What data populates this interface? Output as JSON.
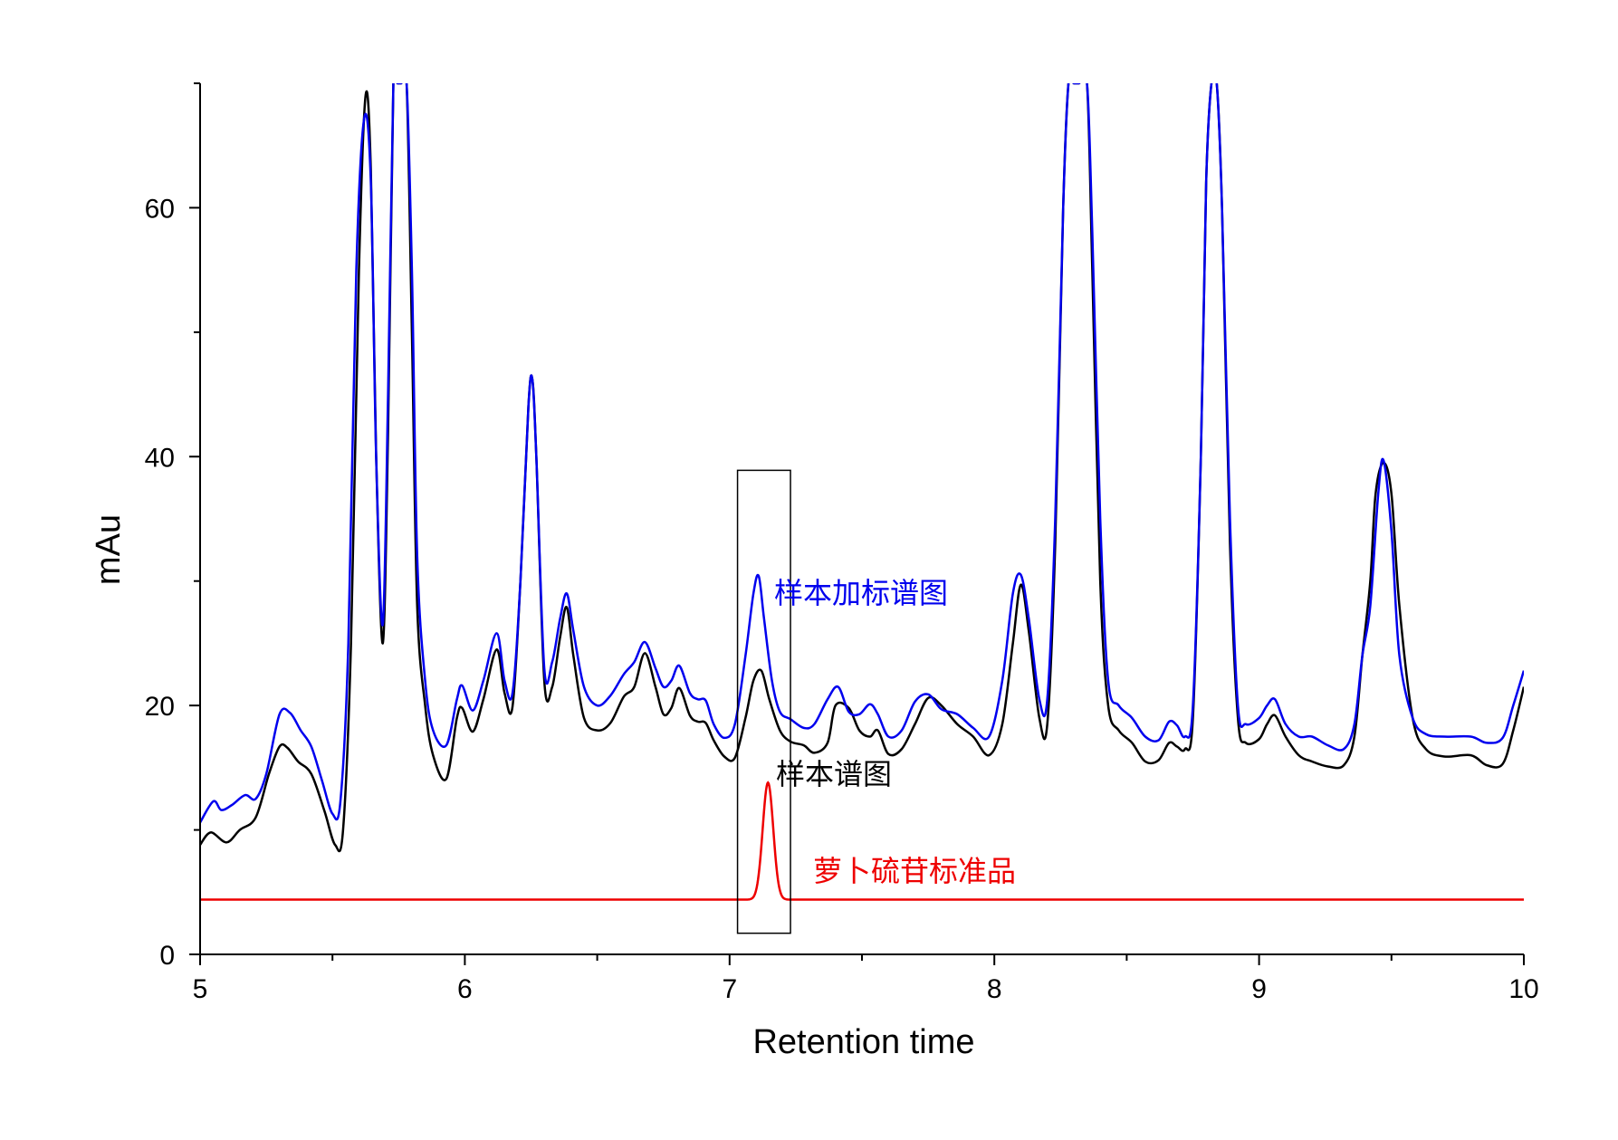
{
  "chart_data": {
    "type": "line",
    "title": "",
    "xlabel": "Retention time",
    "ylabel": "mAu",
    "xlim": [
      5,
      10
    ],
    "ylim": [
      0,
      70
    ],
    "x_ticks": [
      5,
      6,
      7,
      8,
      9,
      10
    ],
    "y_ticks": [
      0,
      20,
      40,
      60
    ],
    "grid": false,
    "legend": "none",
    "series": [
      {
        "name": "样本加标谱图",
        "color": "#0000ee",
        "x": [
          5.0,
          5.05,
          5.08,
          5.12,
          5.17,
          5.21,
          5.25,
          5.3,
          5.34,
          5.38,
          5.42,
          5.46,
          5.5,
          5.53,
          5.56,
          5.59,
          5.62,
          5.645,
          5.665,
          5.69,
          5.71,
          5.73,
          5.745,
          5.76,
          5.78,
          5.8,
          5.82,
          5.85,
          5.88,
          5.93,
          5.97,
          5.99,
          6.03,
          6.07,
          6.12,
          6.15,
          6.18,
          6.21,
          6.24,
          6.255,
          6.27,
          6.3,
          6.33,
          6.36,
          6.385,
          6.41,
          6.45,
          6.5,
          6.55,
          6.6,
          6.64,
          6.68,
          6.72,
          6.75,
          6.78,
          6.81,
          6.85,
          6.88,
          6.91,
          6.94,
          6.98,
          7.02,
          7.06,
          7.09,
          7.11,
          7.13,
          7.16,
          7.19,
          7.23,
          7.28,
          7.32,
          7.37,
          7.41,
          7.45,
          7.49,
          7.53,
          7.56,
          7.6,
          7.65,
          7.7,
          7.75,
          7.8,
          7.86,
          7.92,
          7.98,
          8.03,
          8.07,
          8.1,
          8.13,
          8.17,
          8.2,
          8.23,
          8.26,
          8.28,
          8.3,
          8.32,
          8.35,
          8.37,
          8.4,
          8.43,
          8.47,
          8.52,
          8.57,
          8.62,
          8.66,
          8.69,
          8.72,
          8.75,
          8.78,
          8.8,
          8.82,
          8.84,
          8.86,
          8.89,
          8.92,
          8.95,
          9.0,
          9.03,
          9.06,
          9.1,
          9.15,
          9.2,
          9.26,
          9.32,
          9.36,
          9.39,
          9.42,
          9.45,
          9.47,
          9.5,
          9.53,
          9.58,
          9.63,
          9.7,
          9.8,
          9.86,
          9.92,
          9.96,
          10.0
        ],
        "y": [
          10.6,
          12.3,
          11.6,
          12.0,
          12.8,
          12.5,
          14.5,
          19.3,
          19.4,
          18.0,
          16.7,
          14.0,
          11.3,
          12.3,
          25.0,
          55.0,
          67.2,
          62.0,
          40.0,
          26.5,
          45.0,
          70.0,
          70.0,
          70.0,
          70.0,
          55.0,
          32.0,
          22.0,
          18.0,
          16.8,
          20.5,
          21.6,
          19.6,
          22.0,
          25.8,
          22.0,
          21.0,
          30.0,
          44.0,
          46.2,
          40.0,
          23.0,
          23.5,
          27.0,
          29.0,
          26.0,
          21.5,
          20.0,
          20.8,
          22.5,
          23.5,
          25.1,
          23.0,
          21.5,
          22.0,
          23.2,
          21.0,
          20.5,
          20.4,
          18.5,
          17.4,
          18.5,
          24.0,
          29.0,
          30.4,
          27.0,
          22.0,
          19.5,
          18.9,
          18.2,
          18.5,
          20.5,
          21.5,
          19.5,
          19.3,
          20.1,
          19.3,
          17.5,
          18.0,
          20.3,
          20.9,
          19.7,
          19.3,
          18.2,
          17.5,
          22.0,
          29.0,
          30.5,
          27.0,
          20.5,
          20.5,
          35.0,
          60.0,
          70.0,
          70.0,
          70.0,
          70.0,
          58.0,
          35.0,
          22.0,
          20.0,
          19.0,
          17.5,
          17.2,
          18.7,
          18.4,
          17.5,
          20.0,
          40.0,
          62.0,
          70.0,
          70.0,
          60.0,
          35.0,
          20.0,
          18.5,
          19.0,
          20.0,
          20.5,
          18.5,
          17.5,
          17.5,
          16.8,
          16.5,
          18.5,
          24.0,
          28.0,
          37.0,
          39.7,
          34.0,
          24.0,
          19.0,
          17.7,
          17.5,
          17.5,
          17.0,
          17.4,
          20.0,
          22.8
        ]
      },
      {
        "name": "样本谱图",
        "color": "#000000",
        "x": [
          5.0,
          5.04,
          5.1,
          5.15,
          5.21,
          5.26,
          5.3,
          5.33,
          5.37,
          5.42,
          5.47,
          5.51,
          5.54,
          5.57,
          5.6,
          5.625,
          5.645,
          5.665,
          5.69,
          5.71,
          5.73,
          5.745,
          5.76,
          5.78,
          5.8,
          5.82,
          5.85,
          5.88,
          5.93,
          5.97,
          5.99,
          6.03,
          6.07,
          6.12,
          6.15,
          6.18,
          6.21,
          6.24,
          6.255,
          6.27,
          6.3,
          6.33,
          6.36,
          6.385,
          6.41,
          6.45,
          6.5,
          6.55,
          6.6,
          6.64,
          6.68,
          6.72,
          6.75,
          6.78,
          6.81,
          6.85,
          6.88,
          6.91,
          6.94,
          6.98,
          7.02,
          7.06,
          7.09,
          7.12,
          7.15,
          7.19,
          7.23,
          7.28,
          7.32,
          7.37,
          7.4,
          7.45,
          7.49,
          7.53,
          7.56,
          7.6,
          7.65,
          7.7,
          7.75,
          7.8,
          7.86,
          7.92,
          7.98,
          8.03,
          8.07,
          8.1,
          8.13,
          8.17,
          8.2,
          8.23,
          8.26,
          8.28,
          8.3,
          8.32,
          8.35,
          8.37,
          8.4,
          8.43,
          8.47,
          8.52,
          8.57,
          8.62,
          8.66,
          8.69,
          8.72,
          8.75,
          8.78,
          8.8,
          8.82,
          8.84,
          8.86,
          8.89,
          8.92,
          8.95,
          9.0,
          9.03,
          9.06,
          9.1,
          9.15,
          9.2,
          9.26,
          9.32,
          9.36,
          9.39,
          9.42,
          9.44,
          9.47,
          9.5,
          9.53,
          9.58,
          9.63,
          9.7,
          9.8,
          9.86,
          9.92,
          9.96,
          10.0
        ],
        "y": [
          8.8,
          9.8,
          9.0,
          10.0,
          11.0,
          14.5,
          16.7,
          16.6,
          15.5,
          14.5,
          11.5,
          8.8,
          10.0,
          25.0,
          55.0,
          69.0,
          63.0,
          40.0,
          25.0,
          42.0,
          70.0,
          70.0,
          70.0,
          70.0,
          50.0,
          28.0,
          20.0,
          16.0,
          14.1,
          19.0,
          19.8,
          17.9,
          20.5,
          24.5,
          21.0,
          19.9,
          30.0,
          44.0,
          46.2,
          40.0,
          22.0,
          21.5,
          25.5,
          27.9,
          24.0,
          19.0,
          18.0,
          18.6,
          20.7,
          21.5,
          24.2,
          21.5,
          19.3,
          19.8,
          21.4,
          19.2,
          18.7,
          18.6,
          17.2,
          15.9,
          15.8,
          19.0,
          22.0,
          22.8,
          20.5,
          18.0,
          17.1,
          16.8,
          16.2,
          17.0,
          20.0,
          19.8,
          18.0,
          17.5,
          18.0,
          16.1,
          16.5,
          18.5,
          20.6,
          20.0,
          18.5,
          17.5,
          16.0,
          18.5,
          25.0,
          29.7,
          26.0,
          19.0,
          18.5,
          33.0,
          60.0,
          70.0,
          70.0,
          70.0,
          70.0,
          55.0,
          30.0,
          20.0,
          18.0,
          17.0,
          15.5,
          15.6,
          17.0,
          16.7,
          16.5,
          19.0,
          40.0,
          62.0,
          70.0,
          70.0,
          60.0,
          33.0,
          19.0,
          17.0,
          17.3,
          18.5,
          19.2,
          17.5,
          16.0,
          15.5,
          15.1,
          15.2,
          17.5,
          24.0,
          30.0,
          37.0,
          39.5,
          37.0,
          28.0,
          19.0,
          16.5,
          15.9,
          16.0,
          15.2,
          15.3,
          18.0,
          21.5
        ]
      },
      {
        "name": "萝卜硫苷标准品",
        "color": "#ee0000",
        "gaussian": {
          "baseline": 4.4,
          "center": 7.145,
          "height": 9.4,
          "sigma": 0.02
        },
        "x": [
          5.0,
          10.0
        ],
        "y": [
          4.4,
          4.4
        ]
      }
    ],
    "annotations": [
      {
        "text": "样本加标谱图",
        "color": "#0000ee"
      },
      {
        "text": "样本谱图",
        "color": "#000000"
      },
      {
        "text": "萝卜硫苷标准品",
        "color": "#ee0000"
      }
    ],
    "highlight_box": {
      "x_range": [
        7.03,
        7.23
      ],
      "y_range": [
        1.7,
        38.9
      ]
    }
  }
}
